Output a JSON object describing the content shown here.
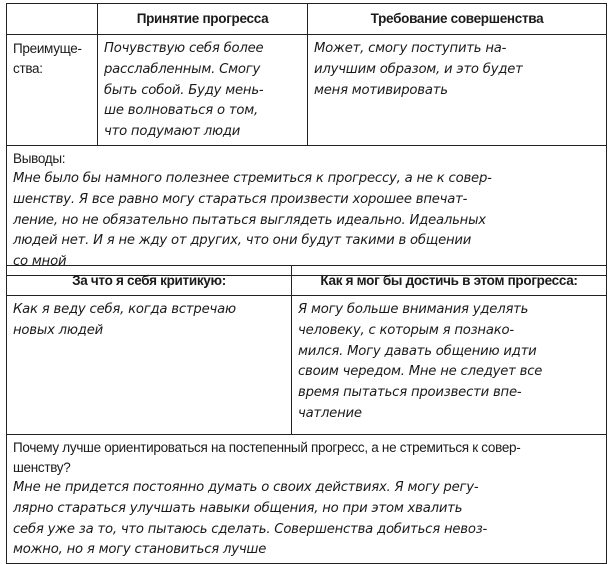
{
  "table1": {
    "headers": [
      "",
      "Принятие прогресса",
      "Требование совершенства"
    ],
    "row_label": "Преимуще-\nства:",
    "acceptance_text": "Почувствую себя более\nрасслабленным. Смогу\nбыть собой. Буду мень-\nше волноваться о том,\nчто подумают люди",
    "perfection_text": "Может, смогу поступить на-\nилучшим образом, и это будет\nменя мотивировать",
    "conclusions_label": "Выводы:",
    "conclusions_text": "Мне было бы намного полезнее стремиться к прогрессу, а не к совер-\nшенству. Я все равно могу стараться произвести хорошее впечат-\nление, но не обязательно пытаться выглядеть идеально. Идеальных\nлюдей нет. И я не жду от других, что они будут такими в общении\nсо мной"
  },
  "table2": {
    "headers": [
      "За что я себя критикую:",
      "Как я мог бы достичь в этом прогресса:"
    ],
    "criticism_text": "Как я веду себя, когда встречаю\nновых людей",
    "progress_text": "Я могу больше внимания уделять\nчеловеку, с которым я познако-\nмился. Могу давать общению идти\nсвоим чередом. Мне не следует все\nвремя пытаться произвести впе-\nчатление",
    "question": "Почему лучше ориентироваться на постепенный прогресс, а не стремиться к совер-\nшенству?",
    "answer": "Мне не придется постоянно думать о своих действиях. Я могу регу-\nлярно стараться улучшать навыки общения, но при этом хвалить\nсебя уже за то, что пытаюсь сделать. Совершенства добиться невоз-\nможно, но я могу становиться лучше"
  }
}
